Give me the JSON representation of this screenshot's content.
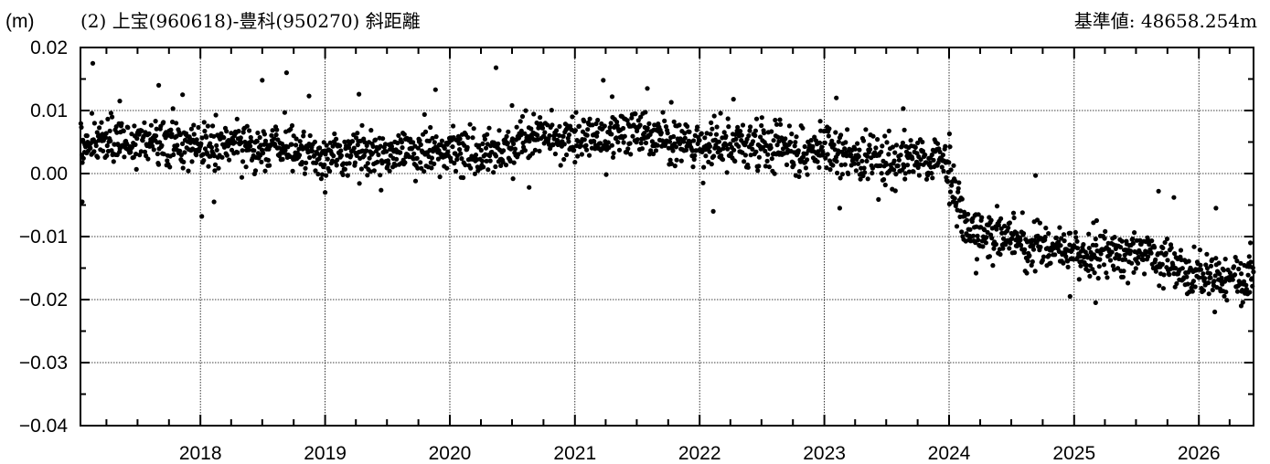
{
  "header": {
    "unit": "(m)",
    "title": "(2) 上宝(960618)-豊科(950270) 斜距離",
    "reference": "基準値: 48658.254m"
  },
  "chart_data": {
    "type": "scatter",
    "title": "(2) 上宝(960618)-豊科(950270) 斜距離",
    "ylabel": "(m)",
    "xlabel": "",
    "reference_value_label": "基準値: 48658.254m",
    "xlim": [
      "2017-01-15",
      "2026-06-10"
    ],
    "ylim": [
      -0.04,
      0.02
    ],
    "yticks": [
      0.02,
      0.01,
      0.0,
      -0.01,
      -0.02,
      -0.03,
      -0.04
    ],
    "ytick_labels": [
      "0.02",
      "0.01",
      "0.00",
      "−0.01",
      "−0.02",
      "−0.03",
      "−0.04"
    ],
    "xticks": [
      "2018-01-01",
      "2019-01-01",
      "2020-01-01",
      "2021-01-01",
      "2022-01-01",
      "2023-01-01",
      "2024-01-01",
      "2025-01-01",
      "2026-01-01"
    ],
    "xtick_labels": [
      "2018",
      "2019",
      "2020",
      "2021",
      "2022",
      "2023",
      "2024",
      "2025",
      "2026"
    ],
    "grid": true,
    "marker_color": "#000000",
    "series": [
      {
        "trend": [
          [
            "2017-01-15",
            0.005
          ],
          [
            "2017-07-01",
            0.0052
          ],
          [
            "2018-01-01",
            0.0045
          ],
          [
            "2018-07-01",
            0.0045
          ],
          [
            "2019-01-01",
            0.0025
          ],
          [
            "2019-07-01",
            0.0032
          ],
          [
            "2020-01-01",
            0.0035
          ],
          [
            "2020-04-01",
            0.0025
          ],
          [
            "2020-09-01",
            0.0058
          ],
          [
            "2021-01-01",
            0.0055
          ],
          [
            "2021-07-01",
            0.0062
          ],
          [
            "2022-01-01",
            0.004
          ],
          [
            "2022-07-01",
            0.0045
          ],
          [
            "2023-01-01",
            0.0035
          ],
          [
            "2023-07-01",
            0.0022
          ],
          [
            "2023-12-20",
            0.0025
          ],
          [
            "2024-02-15",
            -0.009
          ],
          [
            "2024-07-01",
            -0.0105
          ],
          [
            "2025-01-01",
            -0.0125
          ],
          [
            "2025-07-01",
            -0.0125
          ],
          [
            "2026-01-01",
            -0.0155
          ],
          [
            "2026-06-10",
            -0.017
          ]
        ],
        "outliers": [
          [
            "2017-02-20",
            0.0175
          ],
          [
            "2017-01-20",
            -0.0045
          ],
          [
            "2017-05-10",
            0.0115
          ],
          [
            "2017-09-01",
            0.014
          ],
          [
            "2017-11-10",
            0.0125
          ],
          [
            "2018-01-05",
            -0.0068
          ],
          [
            "2018-02-10",
            -0.0045
          ],
          [
            "2018-07-01",
            0.0148
          ],
          [
            "2018-09-10",
            0.016
          ],
          [
            "2018-11-15",
            0.0123
          ],
          [
            "2019-01-01",
            -0.003
          ],
          [
            "2019-04-10",
            0.0126
          ],
          [
            "2019-11-20",
            0.0133
          ],
          [
            "2020-05-15",
            0.0168
          ],
          [
            "2020-07-01",
            0.0108
          ],
          [
            "2020-08-20",
            -0.0022
          ],
          [
            "2021-03-25",
            0.0148
          ],
          [
            "2021-04-20",
            0.0122
          ],
          [
            "2021-08-01",
            0.0135
          ],
          [
            "2021-10-10",
            0.0113
          ],
          [
            "2022-02-10",
            -0.006
          ],
          [
            "2022-04-10",
            0.0118
          ],
          [
            "2022-12-20",
            0.0083
          ],
          [
            "2023-02-05",
            0.012
          ],
          [
            "2023-02-15",
            -0.0055
          ],
          [
            "2023-08-20",
            0.0103
          ],
          [
            "2024-01-02",
            0.0063
          ],
          [
            "2024-03-20",
            -0.0158
          ],
          [
            "2024-09-10",
            -0.0003
          ],
          [
            "2024-12-20",
            -0.0195
          ],
          [
            "2025-03-05",
            -0.0205
          ],
          [
            "2025-09-05",
            -0.0028
          ],
          [
            "2025-10-20",
            -0.0038
          ],
          [
            "2026-02-20",
            -0.0055
          ],
          [
            "2026-06-01",
            -0.011
          ],
          [
            "2026-05-05",
            -0.021
          ]
        ]
      }
    ]
  }
}
